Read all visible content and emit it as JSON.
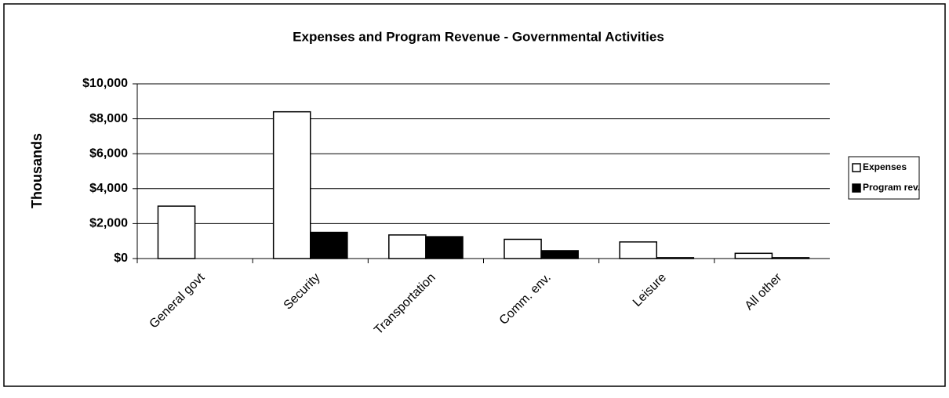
{
  "chart_data": {
    "type": "bar",
    "title": "Expenses and Program Revenue - Governmental Activities",
    "y_label": "Thousands",
    "categories": [
      "General govt",
      "Security",
      "Transportation",
      "Comm. env.",
      "Leisure",
      "All other"
    ],
    "series": [
      {
        "name": "Expenses",
        "color": "#ffffff",
        "values": [
          3000,
          8400,
          1350,
          1100,
          950,
          300
        ]
      },
      {
        "name": "Program rev.",
        "color": "#000000",
        "values": [
          0,
          1500,
          1250,
          450,
          50,
          50
        ]
      }
    ],
    "ylim": [
      0,
      10000
    ],
    "yticks": [
      {
        "value": 0,
        "label": "$0"
      },
      {
        "value": 2000,
        "label": "$2,000"
      },
      {
        "value": 4000,
        "label": "$4,000"
      },
      {
        "value": 6000,
        "label": "$6,000"
      },
      {
        "value": 8000,
        "label": "$8,000"
      },
      {
        "value": 10000,
        "label": "$10,000"
      }
    ],
    "grid": true,
    "legend": "right"
  }
}
